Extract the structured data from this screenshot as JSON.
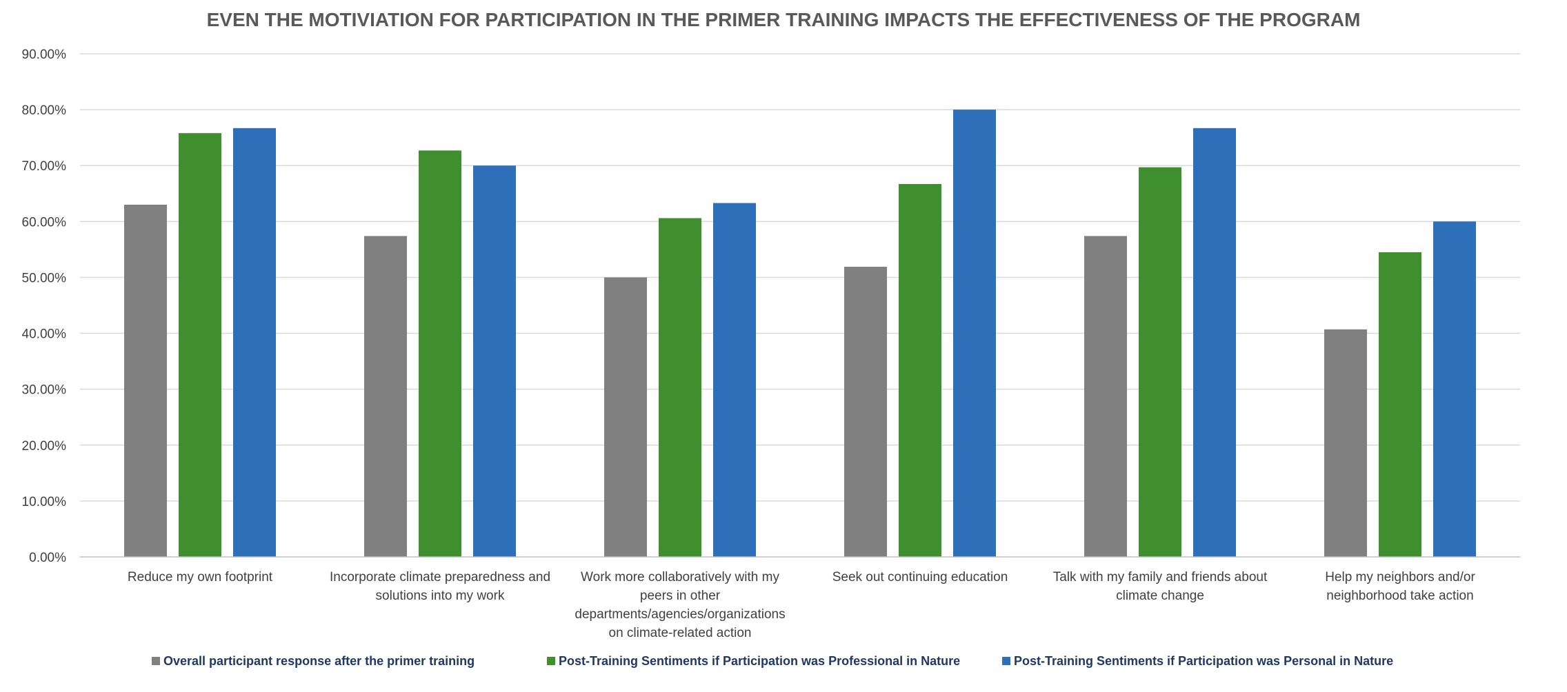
{
  "chart_data": {
    "type": "bar",
    "title": "EVEN THE MOTIVIATION FOR PARTICIPATION IN THE PRIMER TRAINING IMPACTS THE EFFECTIVENESS OF THE PROGRAM",
    "xlabel": "",
    "ylabel": "",
    "ylim": [
      0,
      0.9
    ],
    "y_ticks": [
      0,
      0.1,
      0.2,
      0.3,
      0.4,
      0.5,
      0.6,
      0.7,
      0.8,
      0.9
    ],
    "y_tick_labels": [
      "0.00%",
      "10.00%",
      "20.00%",
      "30.00%",
      "40.00%",
      "50.00%",
      "60.00%",
      "70.00%",
      "80.00%",
      "90.00%"
    ],
    "grid": true,
    "legend_position": "bottom",
    "categories": [
      "Reduce my own footprint",
      "Incorporate climate preparedness and solutions into my work",
      "Work more collaboratively with my peers in other departments/agencies/organizations on climate-related action",
      "Seek out continuing education",
      "Talk with my family and friends about climate change",
      "Help my neighbors and/or neighborhood take action"
    ],
    "category_label_lines": [
      [
        "Reduce my own footprint"
      ],
      [
        "Incorporate climate preparedness and",
        "solutions into my work"
      ],
      [
        "Work more collaboratively with my",
        "peers in other",
        "departments/agencies/organizations",
        "on climate-related action"
      ],
      [
        "Seek out continuing education"
      ],
      [
        "Talk with my family and friends about",
        "climate change"
      ],
      [
        "Help my neighbors and/or",
        "neighborhood take action"
      ]
    ],
    "series": [
      {
        "name": "Overall participant response after the primer training",
        "color": "#808080",
        "values": [
          0.63,
          0.574,
          0.5,
          0.519,
          0.574,
          0.407
        ]
      },
      {
        "name": "Post-Training Sentiments if Participation was Professional in Nature",
        "color": "#3f8f2f",
        "values": [
          0.758,
          0.727,
          0.606,
          0.667,
          0.697,
          0.545
        ]
      },
      {
        "name": "Post-Training Sentiments if Participation was Personal in Nature",
        "color": "#2e6fba",
        "values": [
          0.767,
          0.7,
          0.633,
          0.8,
          0.767,
          0.6
        ]
      }
    ]
  }
}
